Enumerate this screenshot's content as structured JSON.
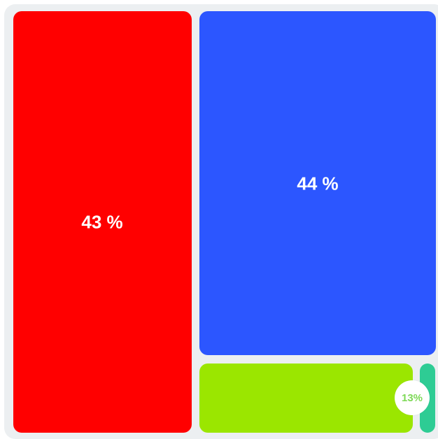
{
  "chart_data": {
    "type": "treemap",
    "title": "",
    "items": [
      {
        "label": "43 %",
        "value": 43,
        "color": "#ff0000"
      },
      {
        "label": "44 %",
        "value": 44,
        "color": "#2c56ff"
      },
      {
        "label": "",
        "value": 10,
        "color": "#9be600"
      },
      {
        "label": "",
        "value": 3,
        "color": "#2ecc94"
      }
    ],
    "callout": {
      "label": "13%",
      "color": "#7ed957"
    }
  }
}
